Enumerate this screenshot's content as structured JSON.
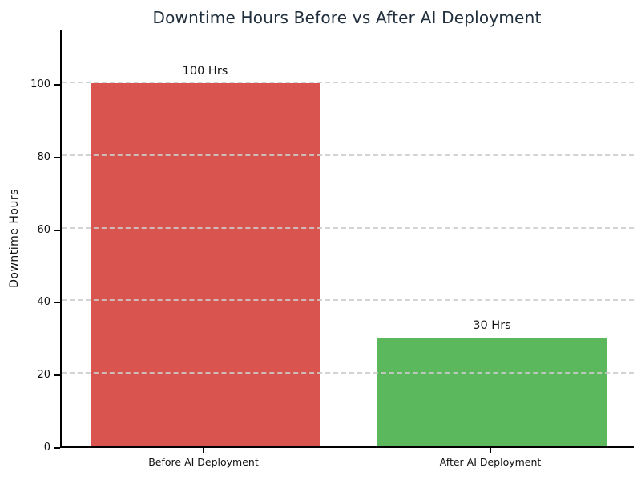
{
  "chart_data": {
    "type": "bar",
    "title": "Downtime Hours Before vs After AI Deployment",
    "xlabel": "",
    "ylabel": "Downtime Hours",
    "categories": [
      "Before AI Deployment",
      "After AI Deployment"
    ],
    "values": [
      100,
      30
    ],
    "bar_labels": [
      "100 Hrs",
      "30 Hrs"
    ],
    "bar_colors": [
      "#d9534f",
      "#5cb85c"
    ],
    "yticks": [
      0,
      20,
      40,
      60,
      80,
      100
    ],
    "ylim": [
      0,
      115
    ],
    "bar_width_fraction": 0.8,
    "grid": "horizontal-dashed",
    "grid_color": "#cccccc",
    "grid_above_bars": true,
    "legend": "none",
    "title_color": "#22303e",
    "axis_color": "#000000",
    "background_color": "#ffffff"
  }
}
